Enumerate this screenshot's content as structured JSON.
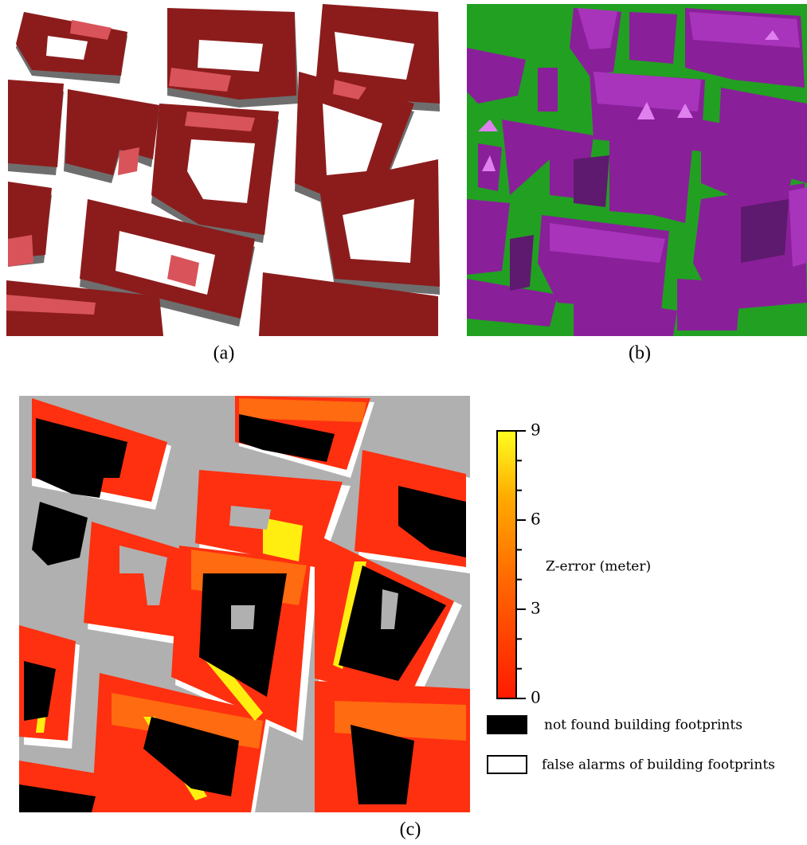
{
  "panels": {
    "a": {
      "caption": "(a)"
    },
    "b": {
      "caption": "(b)"
    },
    "c": {
      "caption": "(c)"
    }
  },
  "colorbar": {
    "label": "Z-error (meter)",
    "lim": [
      0,
      9
    ],
    "ticks": [
      0,
      3,
      6,
      9
    ],
    "minor_ticks": [
      1,
      2,
      4,
      5,
      7,
      8
    ]
  },
  "legend": {
    "items": [
      {
        "label": "not found building footprints"
      },
      {
        "label": "false alarms of building footprints"
      }
    ]
  }
}
